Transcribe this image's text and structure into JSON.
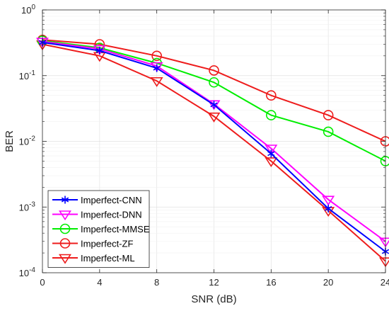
{
  "chart_data": {
    "type": "line",
    "xlabel": "SNR (dB)",
    "ylabel": "BER",
    "x": [
      0,
      4,
      8,
      12,
      16,
      20,
      24
    ],
    "xlim": [
      0,
      24
    ],
    "ylim": [
      0.0001,
      1
    ],
    "yscale": "log",
    "xticks": [
      "0",
      "4",
      "8",
      "12",
      "16",
      "20",
      "24"
    ],
    "yticks": [
      {
        "value": 1,
        "base": "10",
        "exp": "0"
      },
      {
        "value": 0.1,
        "base": "10",
        "exp": "-1"
      },
      {
        "value": 0.01,
        "base": "10",
        "exp": "-2"
      },
      {
        "value": 0.001,
        "base": "10",
        "exp": "-3"
      },
      {
        "value": 0.0001,
        "base": "10",
        "exp": "-4"
      }
    ],
    "grid": true,
    "legend_position": "bottom-left",
    "series": [
      {
        "name": "Imperfect-CNN",
        "color": "#0000ff",
        "marker": "asterisk",
        "values": [
          0.32,
          0.24,
          0.13,
          0.036,
          0.0065,
          0.00095,
          0.00021
        ]
      },
      {
        "name": "Imperfect-DNN",
        "color": "#ff00ff",
        "marker": "triangle-down",
        "values": [
          0.33,
          0.255,
          0.14,
          0.037,
          0.0078,
          0.0013,
          0.0003
        ]
      },
      {
        "name": "Imperfect-MMSE",
        "color": "#00ee00",
        "marker": "circle",
        "values": [
          0.34,
          0.265,
          0.155,
          0.079,
          0.025,
          0.014,
          0.005
        ]
      },
      {
        "name": "Imperfect-ZF",
        "color": "#ee1c1c",
        "marker": "circle",
        "values": [
          0.35,
          0.3,
          0.2,
          0.12,
          0.05,
          0.025,
          0.01
        ]
      },
      {
        "name": "Imperfect-ML",
        "color": "#ee1c1c",
        "marker": "triangle-down",
        "values": [
          0.3,
          0.2,
          0.083,
          0.024,
          0.005,
          0.00088,
          0.00015
        ]
      }
    ]
  }
}
